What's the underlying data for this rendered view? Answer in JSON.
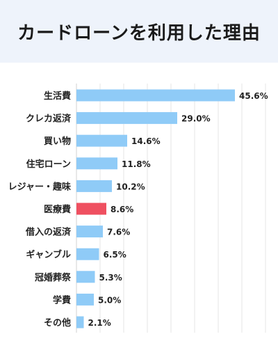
{
  "title": "カードローンを利用した理由",
  "colors": {
    "bar": "#8fcbf7",
    "highlight_bar": "#ef5060",
    "highlight_text": "#ef5060",
    "grid": "#e6e6e6",
    "title_band": "#eef3fb"
  },
  "chart_data": {
    "type": "bar",
    "orientation": "horizontal",
    "title": "カードローンを利用した理由",
    "categories": [
      "生活費",
      "クレカ返済",
      "買い物",
      "住宅ローン",
      "レジャー・趣味",
      "医療費",
      "借入の返済",
      "ギャンブル",
      "冠婚葬祭",
      "学費",
      "その他"
    ],
    "values": [
      45.6,
      29.0,
      14.6,
      11.8,
      10.2,
      8.6,
      7.6,
      6.5,
      5.3,
      5.0,
      2.1
    ],
    "value_labels": [
      "45.6%",
      "29.0%",
      "14.6%",
      "11.8%",
      "10.2%",
      "8.6%",
      "7.6%",
      "6.5%",
      "5.3%",
      "5.0%",
      "2.1%"
    ],
    "highlight": "医療費",
    "xlim": [
      0,
      50
    ],
    "grid": true
  }
}
